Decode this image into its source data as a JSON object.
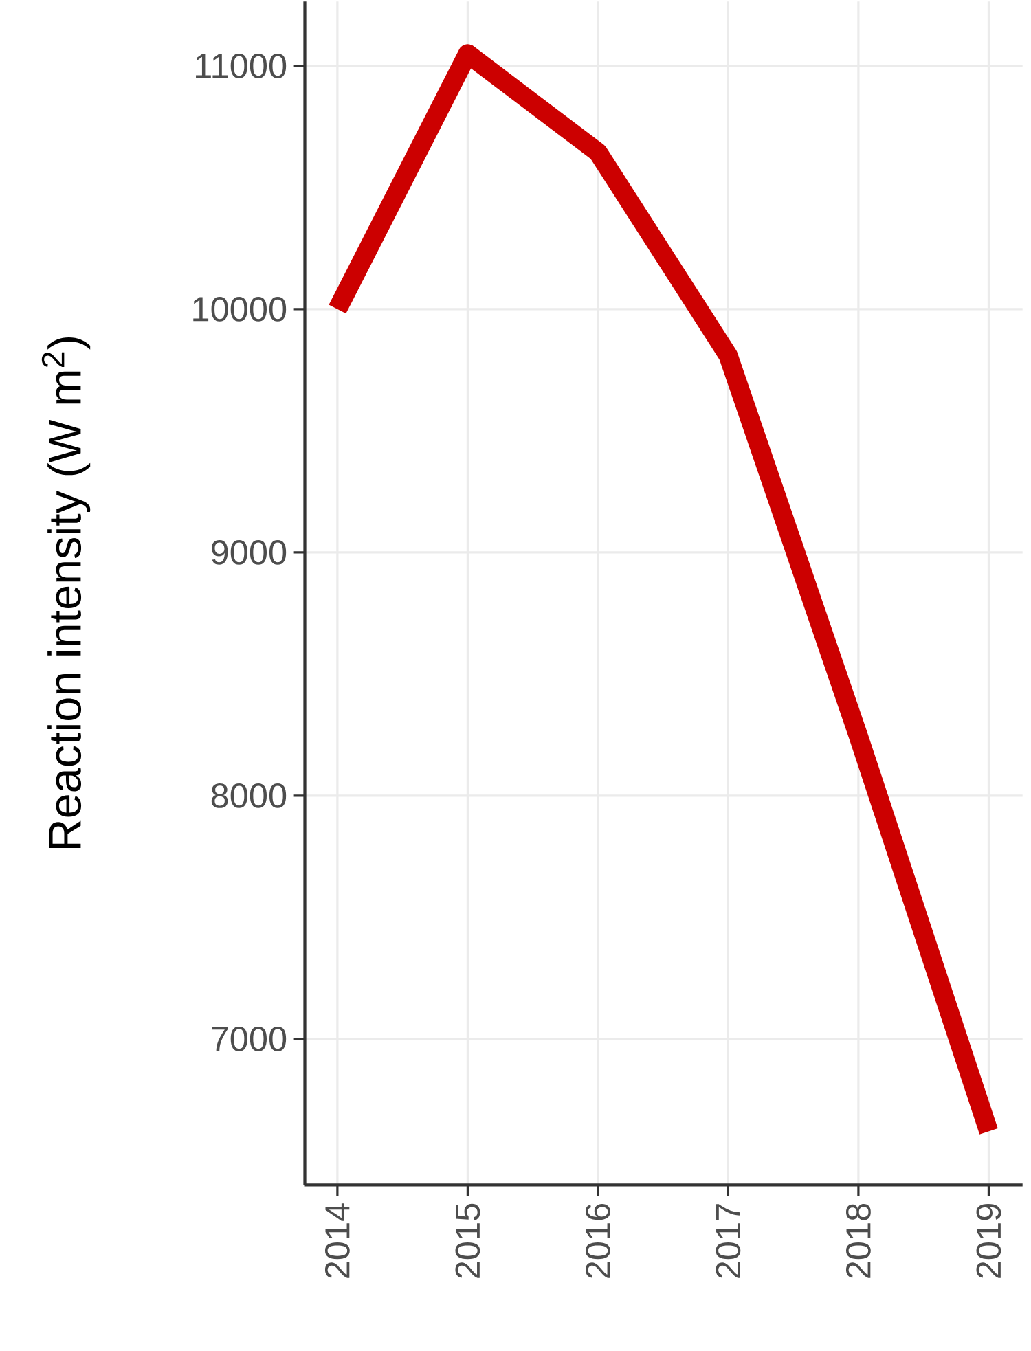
{
  "chart_data": {
    "type": "line",
    "ylabel": "Reaction intensity (W m$^{2}$)",
    "x": [
      2014,
      2015,
      2016,
      2017,
      2018,
      2019
    ],
    "series": [
      {
        "color": "#cc0000",
        "values": [
          10000,
          11050,
          10645,
          9810,
          8245,
          6620
        ]
      }
    ],
    "xlim": [
      2013.75,
      2019.26
    ],
    "ylim": [
      6400,
      11265
    ],
    "xticks": [
      2014,
      2015,
      2016,
      2017,
      2018,
      2019
    ],
    "yticks": [
      7000,
      8000,
      9000,
      10000,
      11000
    ],
    "grid": true,
    "marker": "none",
    "line_style": "solid"
  }
}
